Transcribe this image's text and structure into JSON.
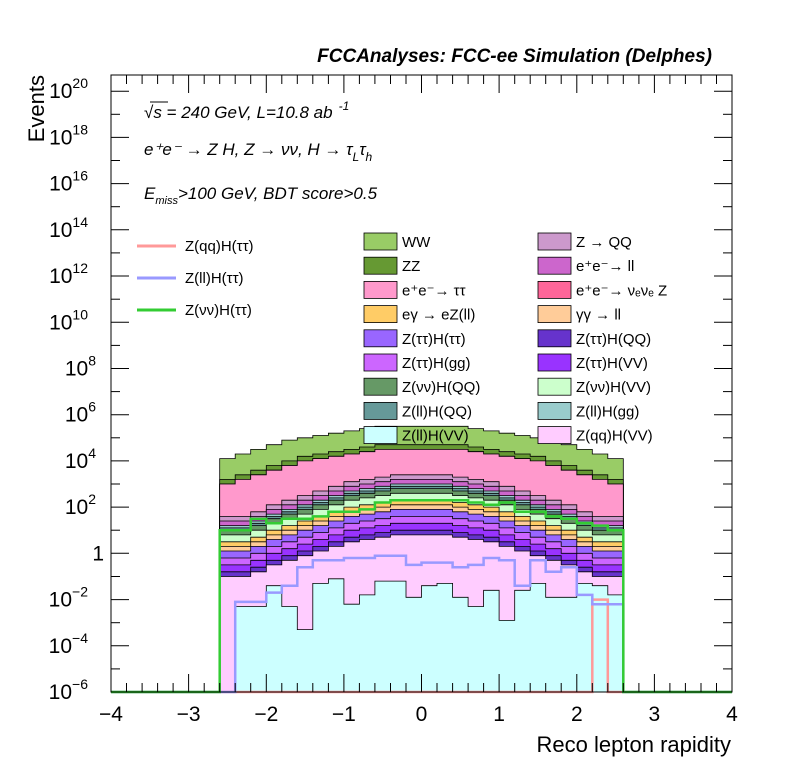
{
  "chart_data": {
    "type": "area",
    "title": "FCCAnalyses: FCC-ee Simulation (Delphes)",
    "xlabel": "Reco lepton rapidity",
    "ylabel": "Events",
    "xlim": [
      -4,
      4
    ],
    "ylim_log10": [
      -6,
      20.7
    ],
    "yscale": "log",
    "x_ticks": [
      "−4",
      "−3",
      "−2",
      "−1",
      "0",
      "1",
      "2",
      "3",
      "4"
    ],
    "y_ticks": [
      {
        "base": "10",
        "exp": "−6",
        "log": -6
      },
      {
        "base": "10",
        "exp": "−4",
        "log": -4
      },
      {
        "base": "10",
        "exp": "−2",
        "log": -2
      },
      {
        "base": "1",
        "exp": "",
        "log": 0
      },
      {
        "base": "10",
        "exp": "2",
        "log": 2
      },
      {
        "base": "10",
        "exp": "4",
        "log": 4
      },
      {
        "base": "10",
        "exp": "6",
        "log": 6
      },
      {
        "base": "10",
        "exp": "8",
        "log": 8
      },
      {
        "base": "10",
        "exp": "10",
        "log": 10
      },
      {
        "base": "10",
        "exp": "12",
        "log": 12
      },
      {
        "base": "10",
        "exp": "14",
        "log": 14
      },
      {
        "base": "10",
        "exp": "16",
        "log": 16
      },
      {
        "base": "10",
        "exp": "18",
        "log": 18
      },
      {
        "base": "10",
        "exp": "20",
        "log": 20
      }
    ],
    "annotations": {
      "line1": "√s = 240 GeV, L=10.8 ab",
      "line1_exp": "-1",
      "line2": "e⁺e⁻ → Z H, Z → νν, H → τ",
      "line2_sub1": "L",
      "line2_tau2": "τ",
      "line2_sub2": "h",
      "cut_pre": "E",
      "cut_sub": "miss",
      "cut_post": ">100 GeV, BDT score>0.5"
    },
    "x_edges_range": [
      -2.6,
      2.6
    ],
    "n_bins": 26,
    "stack": [
      {
        "name": "Z(ll)H(VV)",
        "color": "#ccffff",
        "log10_top": [
          -6,
          -2.3,
          -2.3,
          -1.4,
          -2.3,
          -3.3,
          -1.3,
          -1.1,
          -2.2,
          -1.8,
          -1.2,
          -1.2,
          -1.9,
          -1.4,
          -1.3,
          -1.9,
          -2.3,
          -1.6,
          -2.9,
          -1.6,
          -1.3,
          -1.9,
          -1.9,
          -1.3,
          -1.4,
          -1.8
        ]
      },
      {
        "name": "Z(qq)H(VV)",
        "color": "#ffccff",
        "log10_top": [
          -1.0,
          -1.0,
          -0.8,
          -0.5,
          -0.3,
          -0.1,
          0.1,
          0.3,
          0.5,
          0.6,
          0.7,
          0.8,
          0.8,
          0.8,
          0.8,
          0.7,
          0.6,
          0.5,
          0.3,
          0.1,
          -0.1,
          -0.3,
          -0.5,
          -0.8,
          -1.0,
          -1.0
        ]
      },
      {
        "name": "Z(ττ)H(QQ)",
        "color": "#6633cc",
        "log10_top": [
          -0.8,
          -0.8,
          -0.6,
          -0.3,
          -0.1,
          0.1,
          0.3,
          0.5,
          0.7,
          0.8,
          0.9,
          1.0,
          1.0,
          1.0,
          1.0,
          0.9,
          0.8,
          0.7,
          0.5,
          0.3,
          0.1,
          -0.1,
          -0.3,
          -0.6,
          -0.8,
          -0.8
        ]
      },
      {
        "name": "Z(ττ)H(VV)",
        "color": "#9933ff",
        "log10_top": [
          -0.5,
          -0.5,
          -0.3,
          0.0,
          0.2,
          0.4,
          0.6,
          0.8,
          1.0,
          1.1,
          1.2,
          1.3,
          1.3,
          1.3,
          1.3,
          1.2,
          1.1,
          1.0,
          0.8,
          0.6,
          0.4,
          0.2,
          0.0,
          -0.3,
          -0.5,
          -0.5
        ]
      },
      {
        "name": "Z(ττ)H(gg)",
        "color": "#cc66ff",
        "log10_top": [
          -0.2,
          -0.2,
          0.0,
          0.3,
          0.5,
          0.7,
          0.9,
          1.1,
          1.3,
          1.4,
          1.5,
          1.6,
          1.6,
          1.6,
          1.6,
          1.5,
          1.4,
          1.3,
          1.1,
          0.9,
          0.7,
          0.5,
          0.3,
          0.0,
          -0.2,
          -0.2
        ]
      },
      {
        "name": "Z(ττ)H(ττ)",
        "color": "#9966ff",
        "log10_top": [
          0.1,
          0.1,
          0.3,
          0.6,
          0.8,
          1.0,
          1.2,
          1.4,
          1.6,
          1.7,
          1.8,
          1.9,
          1.9,
          1.9,
          1.9,
          1.8,
          1.7,
          1.6,
          1.4,
          1.2,
          1.0,
          0.8,
          0.6,
          0.3,
          0.1,
          0.1
        ]
      },
      {
        "name": "γγ → ll",
        "color": "#ffcc99",
        "log10_top": [
          0.3,
          0.3,
          0.5,
          0.8,
          1.0,
          1.2,
          1.4,
          1.6,
          1.8,
          1.9,
          2.0,
          2.1,
          2.1,
          2.1,
          2.1,
          2.0,
          1.9,
          1.8,
          1.6,
          1.4,
          1.2,
          1.0,
          0.8,
          0.5,
          0.3,
          0.3
        ]
      },
      {
        "name": "eγ → eZ(ll)",
        "color": "#ffcc66",
        "log10_top": [
          0.5,
          0.5,
          0.7,
          1.0,
          1.2,
          1.4,
          1.6,
          1.8,
          2.0,
          2.1,
          2.2,
          2.3,
          2.3,
          2.3,
          2.3,
          2.2,
          2.1,
          2.0,
          1.8,
          1.6,
          1.4,
          1.2,
          1.0,
          0.7,
          0.5,
          0.5
        ]
      },
      {
        "name": "Z(νν)H(VV)",
        "color": "#ccffcc",
        "log10_top": [
          0.8,
          0.8,
          1.0,
          1.3,
          1.5,
          1.7,
          1.9,
          2.1,
          2.3,
          2.4,
          2.5,
          2.6,
          2.6,
          2.6,
          2.6,
          2.5,
          2.4,
          2.3,
          2.1,
          1.9,
          1.7,
          1.5,
          1.3,
          1.0,
          0.8,
          0.8
        ]
      },
      {
        "name": "Z(νν)H(QQ)",
        "color": "#669966",
        "log10_top": [
          1.0,
          1.0,
          1.2,
          1.5,
          1.7,
          1.9,
          2.1,
          2.3,
          2.5,
          2.6,
          2.7,
          2.8,
          2.8,
          2.8,
          2.8,
          2.7,
          2.6,
          2.5,
          2.3,
          2.1,
          1.9,
          1.7,
          1.5,
          1.2,
          1.0,
          1.0
        ]
      },
      {
        "name": "Z(ll)H(QQ)",
        "color": "#669999",
        "log10_top": [
          1.1,
          1.1,
          1.3,
          1.6,
          1.8,
          2.0,
          2.2,
          2.4,
          2.6,
          2.7,
          2.8,
          2.9,
          2.9,
          2.9,
          2.9,
          2.8,
          2.7,
          2.6,
          2.4,
          2.2,
          2.0,
          1.8,
          1.6,
          1.3,
          1.1,
          1.1
        ]
      },
      {
        "name": "Z(ll)H(gg)",
        "color": "#99cccc",
        "log10_top": [
          1.2,
          1.2,
          1.4,
          1.7,
          1.9,
          2.1,
          2.3,
          2.5,
          2.7,
          2.8,
          2.9,
          3.0,
          3.0,
          3.0,
          3.0,
          2.9,
          2.8,
          2.7,
          2.5,
          2.3,
          2.1,
          1.9,
          1.7,
          1.4,
          1.2,
          1.2
        ]
      },
      {
        "name": "e⁺e⁻→ ll",
        "color": "#cc66cc",
        "log10_top": [
          1.4,
          1.4,
          1.6,
          1.9,
          2.1,
          2.3,
          2.5,
          2.7,
          2.9,
          3.0,
          3.1,
          3.2,
          3.2,
          3.2,
          3.2,
          3.1,
          3.0,
          2.9,
          2.7,
          2.5,
          2.3,
          2.1,
          1.9,
          1.6,
          1.4,
          1.4
        ]
      },
      {
        "name": "Z → QQ",
        "color": "#cc99cc",
        "log10_top": [
          1.6,
          1.6,
          1.8,
          2.1,
          2.3,
          2.5,
          2.7,
          2.9,
          3.1,
          3.2,
          3.3,
          3.4,
          3.4,
          3.4,
          3.4,
          3.3,
          3.2,
          3.1,
          2.9,
          2.7,
          2.5,
          2.3,
          2.1,
          1.8,
          1.6,
          1.6
        ]
      },
      {
        "name": "e⁺e⁻→ ττ",
        "color": "#ff99cc",
        "log10_top": [
          3.0,
          3.2,
          3.4,
          3.6,
          3.8,
          4.0,
          4.1,
          4.2,
          4.3,
          4.4,
          4.5,
          4.5,
          4.5,
          4.5,
          4.5,
          4.5,
          4.4,
          4.3,
          4.2,
          4.1,
          4.0,
          3.8,
          3.6,
          3.4,
          3.2,
          3.0
        ]
      },
      {
        "name": "e⁺e⁻→ νₑνₑ Z",
        "color": "#ff6699",
        "log10_top": [
          3.0,
          3.2,
          3.4,
          3.6,
          3.8,
          4.0,
          4.1,
          4.2,
          4.3,
          4.4,
          4.5,
          4.5,
          4.5,
          4.5,
          4.5,
          4.5,
          4.4,
          4.3,
          4.2,
          4.1,
          4.0,
          3.8,
          3.6,
          3.4,
          3.2,
          3.0
        ]
      },
      {
        "name": "ZZ",
        "color": "#669933",
        "log10_top": [
          3.2,
          3.4,
          3.6,
          3.8,
          4.0,
          4.2,
          4.3,
          4.4,
          4.5,
          4.6,
          4.7,
          4.7,
          4.7,
          4.7,
          4.7,
          4.7,
          4.6,
          4.5,
          4.4,
          4.3,
          4.2,
          4.0,
          3.8,
          3.6,
          3.4,
          3.2
        ]
      },
      {
        "name": "WW",
        "color": "#99cc66",
        "log10_top": [
          4.1,
          4.3,
          4.5,
          4.7,
          4.9,
          5.0,
          5.1,
          5.2,
          5.3,
          5.4,
          5.5,
          5.5,
          5.5,
          5.5,
          5.5,
          5.5,
          5.4,
          5.3,
          5.2,
          5.1,
          5.0,
          4.9,
          4.7,
          4.5,
          4.3,
          4.1
        ]
      }
    ],
    "signal_lines": [
      {
        "name": "Z(qq)H(ττ)",
        "color": "#ff9999",
        "log10": [
          -6,
          -6,
          -6,
          -6,
          -6,
          -6,
          -6,
          -6,
          -6,
          -6,
          -6,
          -6,
          -6,
          -6,
          -6,
          -6,
          -6,
          -6,
          -6,
          -6,
          -6,
          -6,
          -6,
          -6,
          -2.0,
          -6
        ]
      },
      {
        "name": "Z(ll)H(ττ)",
        "color": "#9999ff",
        "log10": [
          -6,
          -2.1,
          -2.1,
          -1.7,
          -1.4,
          -0.6,
          -0.3,
          -0.3,
          -0.2,
          -0.2,
          -0.1,
          -0.1,
          -0.5,
          -0.4,
          -0.4,
          -0.6,
          -0.5,
          -0.2,
          -0.3,
          -1.4,
          -0.3,
          -0.8,
          -0.6,
          -1.8,
          -2.2,
          -2.2
        ]
      },
      {
        "name": "Z(νν)H(ττ)",
        "color": "#33cc33",
        "log10": [
          1.0,
          1.0,
          1.5,
          1.3,
          1.5,
          1.5,
          1.6,
          1.8,
          1.8,
          1.9,
          2.2,
          2.3,
          2.3,
          2.3,
          2.3,
          2.3,
          2.2,
          2.1,
          2.2,
          1.8,
          1.8,
          1.6,
          1.5,
          1.3,
          1.2,
          1.0
        ]
      }
    ],
    "legend_left": [
      "Z(qq)H(ττ)",
      "Z(ll)H(ττ)",
      "Z(νν)H(ττ)"
    ],
    "legend_cols": [
      [
        "WW",
        "ZZ",
        "e⁺e⁻→ ττ",
        "eγ → eZ(ll)",
        "Z(ττ)H(ττ)",
        "Z(ττ)H(gg)",
        "Z(νν)H(QQ)",
        "Z(ll)H(QQ)",
        "Z(ll)H(VV)"
      ],
      [
        "Z → QQ",
        "e⁺e⁻→ ll",
        "e⁺e⁻→ νₑνₑ Z",
        "γγ → ll",
        "Z(ττ)H(QQ)",
        "Z(ττ)H(VV)",
        "Z(νν)H(VV)",
        "Z(ll)H(gg)",
        "Z(qq)H(VV)"
      ]
    ],
    "grid": false,
    "legend_placement": "center"
  }
}
